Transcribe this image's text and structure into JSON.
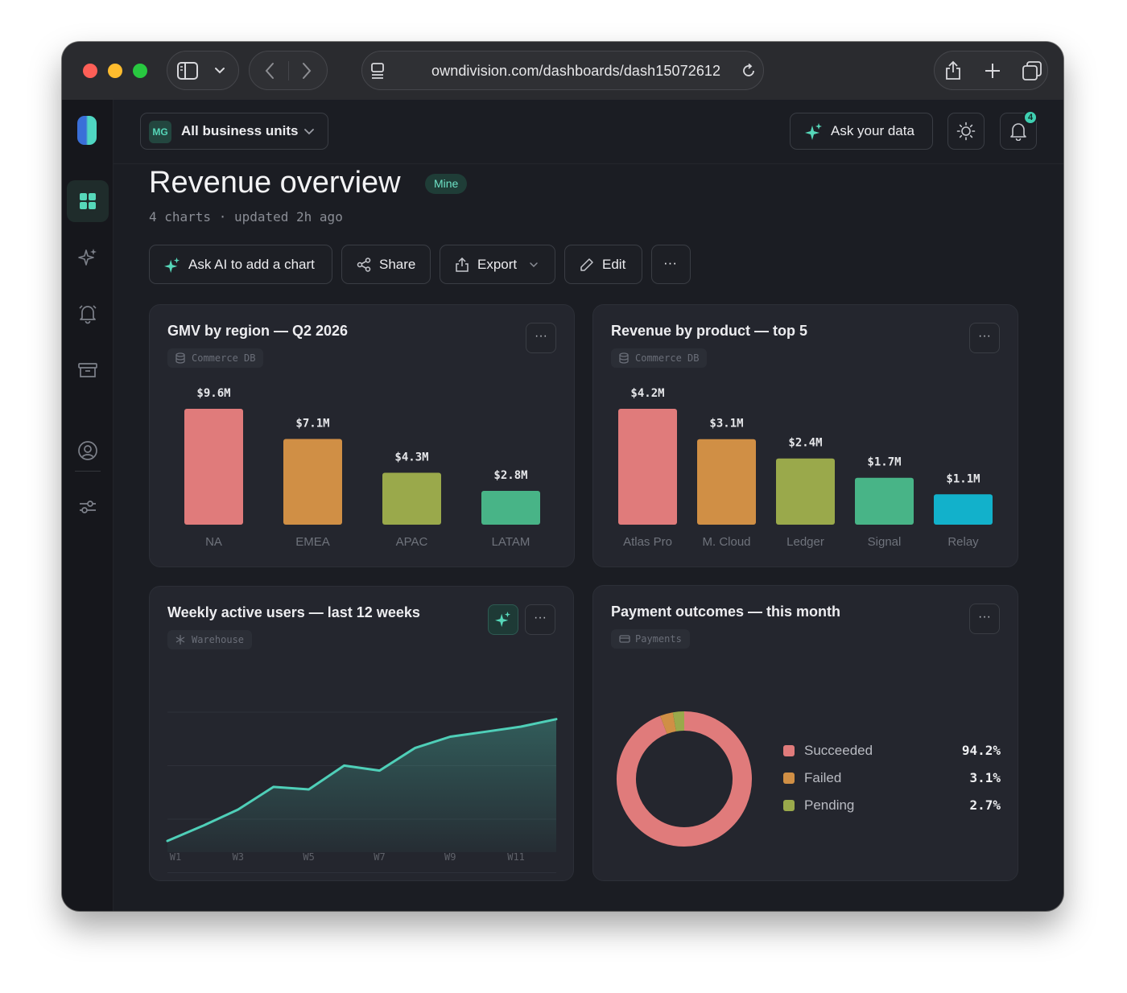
{
  "browser": {
    "url": "owndivision.com/dashboards/dash15072612"
  },
  "topbar": {
    "business_unit_avatar": "MG",
    "business_unit_label": "All business units",
    "ask_label": "Ask your data",
    "notification_count": "4"
  },
  "page": {
    "title": "Revenue overview",
    "badge": "Mine",
    "subtitle": "4 charts · updated 2h ago"
  },
  "actions": {
    "ask_ai": "Ask AI to add a chart",
    "share": "Share",
    "export": "Export",
    "edit": "Edit",
    "more": "···"
  },
  "cards": {
    "gmv": {
      "title": "GMV by region — Q2 2026",
      "source": "Commerce DB",
      "more": "···"
    },
    "product": {
      "title": "Revenue by product — top 5",
      "source": "Commerce DB",
      "more": "···"
    },
    "wau": {
      "title": "Weekly active users — last 12 weeks",
      "source": "Warehouse",
      "more": "···"
    },
    "payments": {
      "title": "Payment outcomes — this month",
      "source": "Payments",
      "more": "···"
    }
  },
  "chart_data": [
    {
      "type": "bar",
      "title": "GMV by region — Q2 2026",
      "categories": [
        "NA",
        "EMEA",
        "APAC",
        "LATAM"
      ],
      "values": [
        9.6,
        7.1,
        4.3,
        2.8
      ],
      "labels": [
        "$9.6M",
        "$7.1M",
        "$4.3M",
        "$2.8M"
      ],
      "colors": [
        "#e07b7b",
        "#d08f45",
        "#9aa94b",
        "#48b487"
      ],
      "ylim": [
        0,
        9.6
      ]
    },
    {
      "type": "bar",
      "title": "Revenue by product — top 5",
      "categories": [
        "Atlas Pro",
        "M. Cloud",
        "Ledger",
        "Signal",
        "Relay"
      ],
      "values": [
        4.2,
        3.1,
        2.4,
        1.7,
        1.1
      ],
      "labels": [
        "$4.2M",
        "$3.1M",
        "$2.4M",
        "$1.7M",
        "$1.1M"
      ],
      "colors": [
        "#e07b7b",
        "#d08f45",
        "#9aa94b",
        "#48b487",
        "#12b1cb"
      ],
      "ylim": [
        0,
        4.2
      ]
    },
    {
      "type": "area",
      "title": "Weekly active users — last 12 weeks",
      "x": [
        "W1",
        "W2",
        "W3",
        "W4",
        "W5",
        "W6",
        "W7",
        "W8",
        "W9",
        "W10",
        "W11",
        "W12"
      ],
      "tick_labels": [
        "W1",
        "W3",
        "W5",
        "W7",
        "W9",
        "W11"
      ],
      "values": [
        0,
        12,
        25,
        43,
        41,
        60,
        56,
        74,
        83,
        87,
        91,
        97
      ],
      "ylim": [
        0,
        100
      ],
      "grid": true,
      "color": "#4fcfb8"
    },
    {
      "type": "pie",
      "title": "Payment outcomes — this month",
      "categories": [
        "Succeeded",
        "Failed",
        "Pending"
      ],
      "values": [
        94.2,
        3.1,
        2.7
      ],
      "labels": [
        "94.2%",
        "3.1%",
        "2.7%"
      ],
      "colors": [
        "#e07b7b",
        "#d08f45",
        "#9aa94b"
      ],
      "legend": "right"
    }
  ]
}
